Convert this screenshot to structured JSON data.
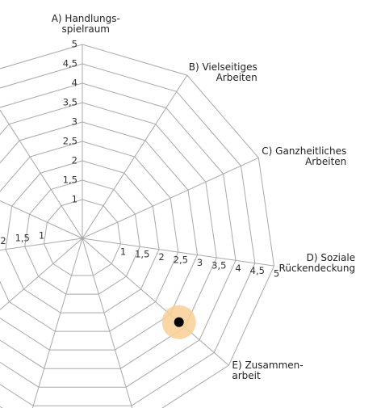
{
  "chart_data": {
    "type": "radar",
    "categories": [
      "A) Handlungs-\nspielraum",
      "B) Vielseitiges\nArbeiten",
      "C) Ganzheitliches\nArbeiten",
      "D) Soziale\nRückendeckung",
      "E) Zusammen-\narbeit",
      null,
      null,
      null,
      null,
      null,
      null
    ],
    "series": [
      {
        "color": "#000000",
        "highlight": "#f9cf94",
        "values": [
          null,
          null,
          null,
          null,
          3.3,
          null,
          null,
          null,
          null,
          null,
          null
        ]
      }
    ],
    "ylim": [
      0,
      5
    ],
    "yticks": [
      1,
      {
        "value": 1.5,
        "label": "1,5"
      },
      2,
      {
        "value": 2.5,
        "label": "2,5"
      },
      3,
      {
        "value": 3.5,
        "label": "3,5"
      },
      4,
      {
        "value": 4.5,
        "label": "4,5"
      },
      5
    ],
    "grid": true
  }
}
